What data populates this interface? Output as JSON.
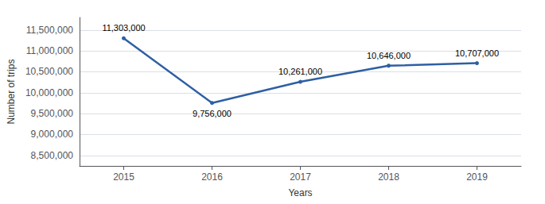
{
  "chart_data": {
    "type": "line",
    "xlabel": "Years",
    "ylabel": "Number of trips",
    "x": [
      2015,
      2016,
      2017,
      2018,
      2019
    ],
    "values": [
      11303000,
      9756000,
      10261000,
      10646000,
      10707000
    ],
    "value_labels": [
      "11,303,000",
      "9,756,000",
      "10,261,000",
      "10,646,000",
      "10,707,000"
    ],
    "data_labels": true,
    "color": "#2E5FA3",
    "xlim": [
      2014.5,
      2019.5
    ],
    "xticks": [
      2015,
      2016,
      2017,
      2018,
      2019
    ],
    "ylim": [
      8250000,
      11800000
    ],
    "yticks": [
      {
        "value": 8500000,
        "label": "8,500,000"
      },
      {
        "value": 9000000,
        "label": "9,000,000"
      },
      {
        "value": 9500000,
        "label": "9,500,000"
      },
      {
        "value": 10000000,
        "label": "10,000,000"
      },
      {
        "value": 10500000,
        "label": "10,500,000"
      },
      {
        "value": 11000000,
        "label": "11,000,000"
      },
      {
        "value": 11500000,
        "label": "11,500,000"
      }
    ],
    "grid": true
  }
}
